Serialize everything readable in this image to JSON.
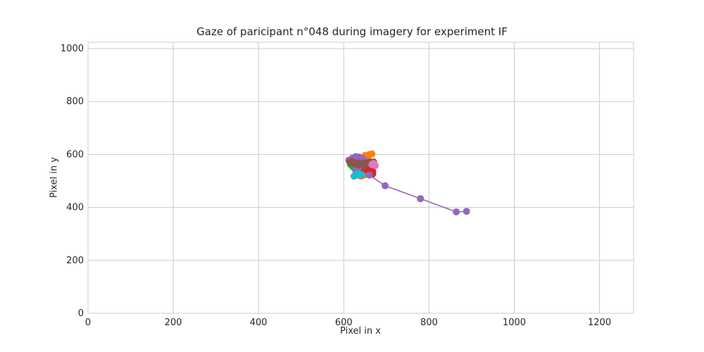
{
  "chart_data": {
    "type": "scatter",
    "title": "Gaze of paricipant n°048 during imagery for experiment IF",
    "xlabel": "Pixel in x",
    "ylabel": "Pixel in y",
    "xlim": [
      0,
      1280
    ],
    "ylim": [
      0,
      1024
    ],
    "xticks": [
      0,
      200,
      400,
      600,
      800,
      1000,
      1200
    ],
    "yticks": [
      0,
      200,
      400,
      600,
      800,
      1000
    ],
    "grid": true,
    "legend": "none",
    "series": [
      {
        "color": "#1f77b4",
        "points": [
          [
            622,
            560
          ],
          [
            628,
            552
          ],
          [
            634,
            546
          ],
          [
            640,
            540
          ],
          [
            646,
            534
          ],
          [
            650,
            530
          ],
          [
            644,
            528
          ],
          [
            636,
            532
          ],
          [
            630,
            540
          ]
        ]
      },
      {
        "color": "#ff7f0e",
        "points": [
          [
            630,
            580
          ],
          [
            640,
            588
          ],
          [
            650,
            596
          ],
          [
            660,
            600
          ],
          [
            666,
            602
          ],
          [
            658,
            596
          ],
          [
            648,
            590
          ],
          [
            642,
            578
          ],
          [
            646,
            566
          ],
          [
            652,
            556
          ],
          [
            658,
            546
          ],
          [
            655,
            532
          ],
          [
            648,
            522
          ],
          [
            640,
            518
          ]
        ]
      },
      {
        "color": "#2ca02c",
        "points": [
          [
            616,
            562
          ],
          [
            620,
            556
          ],
          [
            624,
            550
          ],
          [
            628,
            545
          ],
          [
            634,
            552
          ],
          [
            640,
            558
          ]
        ]
      },
      {
        "color": "#d62728",
        "points": [
          [
            648,
            540
          ],
          [
            656,
            546
          ],
          [
            662,
            550
          ],
          [
            666,
            544
          ],
          [
            668,
            536
          ],
          [
            664,
            528
          ],
          [
            668,
            526
          ]
        ]
      },
      {
        "color": "#9467bd",
        "points": [
          [
            612,
            578
          ],
          [
            620,
            586
          ],
          [
            628,
            592
          ],
          [
            636,
            590
          ],
          [
            644,
            584
          ],
          [
            650,
            576
          ],
          [
            640,
            564
          ],
          [
            630,
            560
          ],
          [
            636,
            552
          ],
          [
            628,
            540
          ],
          [
            642,
            522
          ],
          [
            660,
            522
          ],
          [
            697,
            482
          ],
          [
            780,
            433
          ],
          [
            864,
            383
          ],
          [
            888,
            385
          ]
        ]
      },
      {
        "color": "#8c564b",
        "points": [
          [
            614,
            572
          ],
          [
            624,
            570
          ],
          [
            634,
            568
          ],
          [
            644,
            566
          ],
          [
            652,
            568
          ],
          [
            662,
            572
          ],
          [
            670,
            572
          ],
          [
            660,
            564
          ],
          [
            646,
            558
          ],
          [
            634,
            560
          ],
          [
            624,
            566
          ],
          [
            618,
            574
          ]
        ]
      },
      {
        "color": "#e377c2",
        "points": [
          [
            666,
            562
          ],
          [
            674,
            558
          ],
          [
            670,
            566
          ]
        ]
      },
      {
        "color": "#17becf",
        "points": [
          [
            624,
            518
          ],
          [
            630,
            522
          ],
          [
            636,
            526
          ],
          [
            642,
            524
          ],
          [
            632,
            528
          ]
        ]
      }
    ]
  }
}
